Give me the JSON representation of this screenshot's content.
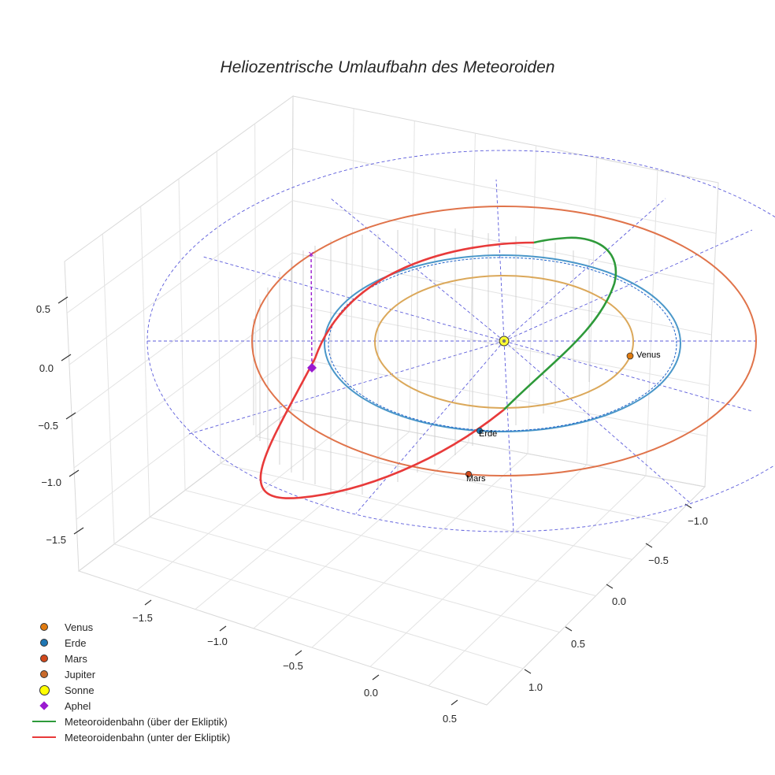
{
  "title": "Heliozentrische Umlaufbahn des Meteoroiden",
  "colors": {
    "venus": "#e69a2f",
    "earth": "#3a8fc9",
    "mars": "#e06a3a",
    "meteor_above": "#2e9a3a",
    "meteor_below": "#e83a3a",
    "aphel": "#9a1ad0",
    "sun": "#ffff33",
    "grid_blue": "#5b5bdb"
  },
  "legend": {
    "items": [
      {
        "label": "Venus",
        "marker": "dot",
        "color": "#e07b10"
      },
      {
        "label": "Erde",
        "marker": "dot",
        "color": "#1f77b4"
      },
      {
        "label": "Mars",
        "marker": "dot",
        "color": "#d2481b"
      },
      {
        "label": "Jupiter",
        "marker": "dot",
        "color": "#c86a2a"
      },
      {
        "label": "Sonne",
        "marker": "bigdot",
        "color": "#ffff00"
      },
      {
        "label": "Aphel",
        "marker": "diamond",
        "color": "#9a1ad0"
      },
      {
        "label": "Meteoroidenbahn (über der Ekliptik)",
        "marker": "line",
        "color": "#2e9a3a"
      },
      {
        "label": "Meteoroidenbahn (unter der Ekliptik)",
        "marker": "line",
        "color": "#e83a3a"
      }
    ]
  },
  "chart_data": {
    "type": "scatter3d",
    "title": "Heliozentrische Umlaufbahn des Meteoroiden",
    "x_ticks": [
      "−1.5",
      "−1.0",
      "−0.5",
      "0.0",
      "0.5"
    ],
    "y_ticks": [
      "−1.0",
      "−0.5",
      "0.0",
      "0.5",
      "1.0"
    ],
    "z_ticks": [
      "0.5",
      "0.0",
      "−0.5",
      "−1.0",
      "−1.5"
    ],
    "planets": [
      {
        "name": "Venus",
        "label": "Venus",
        "orbit_radius_au": 0.72
      },
      {
        "name": "Erde",
        "label": "Erde",
        "orbit_radius_au": 1.0
      },
      {
        "name": "Mars",
        "label": "Mars",
        "orbit_radius_au": 1.52
      }
    ],
    "series": [
      {
        "name": "Meteoroidenbahn (über der Ekliptik)"
      },
      {
        "name": "Meteoroidenbahn (unter der Ekliptik)"
      }
    ],
    "aphel": {
      "name": "Aphel"
    },
    "grid": true
  }
}
